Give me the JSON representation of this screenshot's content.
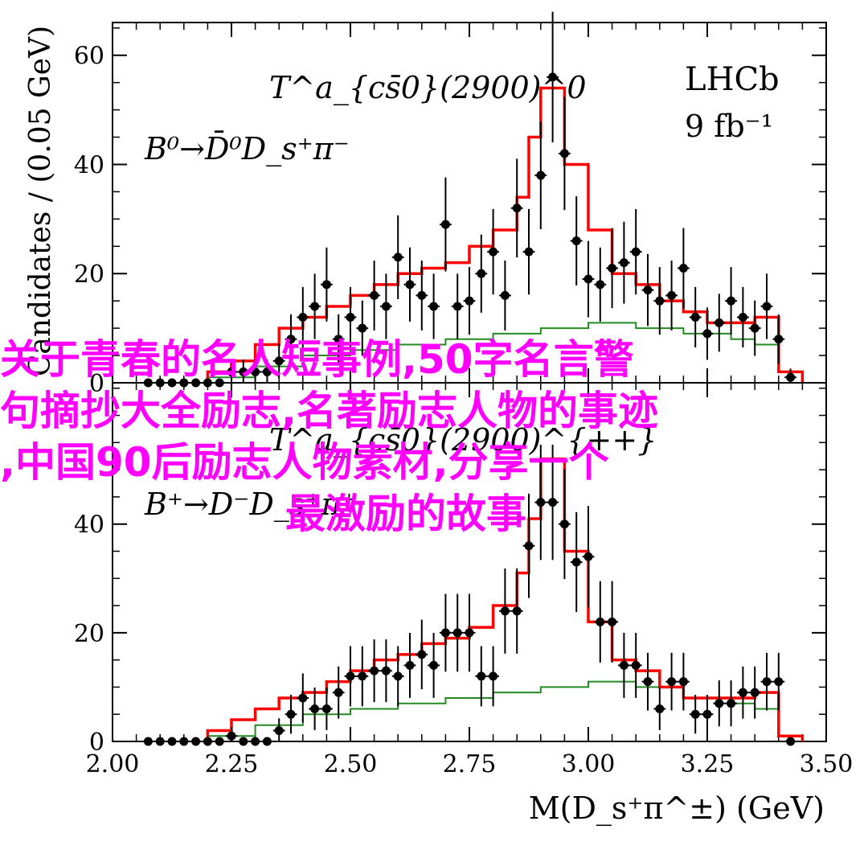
{
  "chart_data": [
    {
      "type": "histogram_with_points",
      "panel": "top",
      "title_line1": "T^a_{cs̄0}(2900)^0",
      "title_line2": "B⁰→D̄⁰D_s⁺π⁻",
      "tag_line1": "LHCb",
      "tag_line2": "9 fb⁻¹",
      "ylabel": "Candidates / (0.05 GeV)",
      "ylim": [
        0,
        66
      ],
      "yticks": [
        0,
        20,
        40,
        60
      ],
      "xlim": [
        2.0,
        3.5
      ],
      "bin_width": 0.025,
      "data_x": [
        2.075,
        2.1,
        2.125,
        2.15,
        2.175,
        2.2,
        2.225,
        2.25,
        2.275,
        2.3,
        2.325,
        2.35,
        2.375,
        2.4,
        2.425,
        2.45,
        2.475,
        2.5,
        2.525,
        2.55,
        2.575,
        2.6,
        2.625,
        2.65,
        2.675,
        2.7,
        2.725,
        2.75,
        2.775,
        2.8,
        2.825,
        2.85,
        2.875,
        2.9,
        2.925,
        2.95,
        2.975,
        3.0,
        3.025,
        3.05,
        3.075,
        3.1,
        3.125,
        3.15,
        3.175,
        3.2,
        3.225,
        3.25,
        3.275,
        3.3,
        3.325,
        3.35,
        3.375,
        3.4,
        3.425
      ],
      "data_y": [
        0,
        0,
        0,
        0,
        0,
        0,
        0,
        2,
        2,
        2,
        2,
        4,
        8,
        12,
        14,
        18,
        8,
        12,
        10,
        16,
        14,
        23,
        18,
        16,
        14,
        29,
        14,
        15,
        20,
        24,
        16,
        32,
        24,
        38,
        56,
        42,
        26,
        19,
        18,
        21,
        22,
        24,
        17,
        15,
        16,
        21,
        12,
        9,
        11,
        15,
        12,
        10,
        14,
        8,
        1
      ],
      "fit_total_edges": [
        2.2,
        2.25,
        2.3,
        2.35,
        2.4,
        2.45,
        2.5,
        2.55,
        2.6,
        2.65,
        2.7,
        2.75,
        2.8,
        2.85,
        2.875,
        2.9,
        2.95,
        3.0,
        3.05,
        3.1,
        3.15,
        3.2,
        3.25,
        3.3,
        3.35,
        3.4,
        3.45
      ],
      "fit_total_values": [
        2,
        4,
        7,
        10,
        12,
        14,
        16,
        18,
        20,
        21,
        22,
        25,
        28,
        34,
        45,
        54,
        40,
        28,
        20,
        18,
        15,
        13,
        11,
        11,
        12,
        2
      ],
      "fit_bkg_edges": [
        2.2,
        2.3,
        2.4,
        2.5,
        2.6,
        2.7,
        2.8,
        2.9,
        3.0,
        3.1,
        3.2,
        3.3,
        3.35,
        3.4,
        3.45
      ],
      "fit_bkg_values": [
        1,
        3,
        5,
        6,
        7,
        8,
        9,
        10,
        11,
        10,
        9,
        8,
        7,
        2
      ]
    },
    {
      "type": "histogram_with_points",
      "panel": "bottom",
      "title_line1": "T^a_{cs̄0}(2900)^{++}",
      "title_line2": "B⁺→D⁻D_s⁺π⁺",
      "xlabel": "M(D_s⁺π^±) (GeV)",
      "ylim": [
        0,
        66
      ],
      "yticks": [
        0,
        20,
        40
      ],
      "xlim": [
        2.0,
        3.5
      ],
      "xticks": [
        "2.00",
        "2.25",
        "2.50",
        "2.75",
        "3.00",
        "3.25",
        "3.50"
      ],
      "data_x": [
        2.075,
        2.1,
        2.125,
        2.15,
        2.175,
        2.2,
        2.225,
        2.25,
        2.275,
        2.3,
        2.325,
        2.35,
        2.375,
        2.4,
        2.425,
        2.45,
        2.475,
        2.5,
        2.525,
        2.55,
        2.575,
        2.6,
        2.625,
        2.65,
        2.675,
        2.7,
        2.725,
        2.75,
        2.775,
        2.8,
        2.825,
        2.85,
        2.875,
        2.9,
        2.925,
        2.95,
        2.975,
        3.0,
        3.025,
        3.05,
        3.075,
        3.1,
        3.125,
        3.15,
        3.175,
        3.2,
        3.225,
        3.25,
        3.275,
        3.3,
        3.325,
        3.35,
        3.375,
        3.4,
        3.425
      ],
      "data_y": [
        0,
        0,
        0,
        0,
        0,
        0,
        0,
        1,
        0,
        0,
        0,
        2,
        5,
        8,
        6,
        6,
        9,
        12,
        12,
        13,
        13,
        12,
        14,
        16,
        14,
        20,
        20,
        20,
        12,
        12,
        24,
        24,
        36,
        44,
        44,
        40,
        33,
        34,
        22,
        22,
        14,
        14,
        11,
        6,
        11,
        11,
        5,
        5,
        7,
        7,
        9,
        9,
        11,
        11,
        0
      ],
      "fit_total_edges": [
        2.2,
        2.25,
        2.3,
        2.35,
        2.4,
        2.45,
        2.5,
        2.55,
        2.6,
        2.65,
        2.7,
        2.75,
        2.8,
        2.85,
        2.875,
        2.9,
        2.95,
        3.0,
        3.05,
        3.1,
        3.15,
        3.2,
        3.25,
        3.3,
        3.35,
        3.4,
        3.45
      ],
      "fit_total_values": [
        2,
        4,
        6,
        8,
        9,
        11,
        13,
        15,
        16,
        18,
        19,
        21,
        25,
        31,
        41,
        52,
        35,
        22,
        15,
        13,
        10,
        8,
        8,
        8,
        9,
        1
      ],
      "fit_bkg_edges": [
        2.2,
        2.3,
        2.4,
        2.5,
        2.6,
        2.7,
        2.8,
        2.9,
        3.0,
        3.1,
        3.2,
        3.3,
        3.35,
        3.4,
        3.45
      ],
      "fit_bkg_values": [
        1,
        3,
        5,
        6,
        7,
        8,
        9,
        10,
        11,
        10,
        8,
        7,
        6,
        1
      ]
    }
  ],
  "overlay_text": {
    "line1": "关于青春的名人短事例,50字名言警",
    "line2": "句摘抄大全励志,名著励志人物的事迹",
    "line3": ",中国90后励志人物素材,分享一个",
    "line4": "最激励的故事"
  },
  "colors": {
    "total_fit": "#ff0000",
    "background_fit": "#228b22",
    "data": "#000000",
    "overlay": "#ff00ff"
  }
}
